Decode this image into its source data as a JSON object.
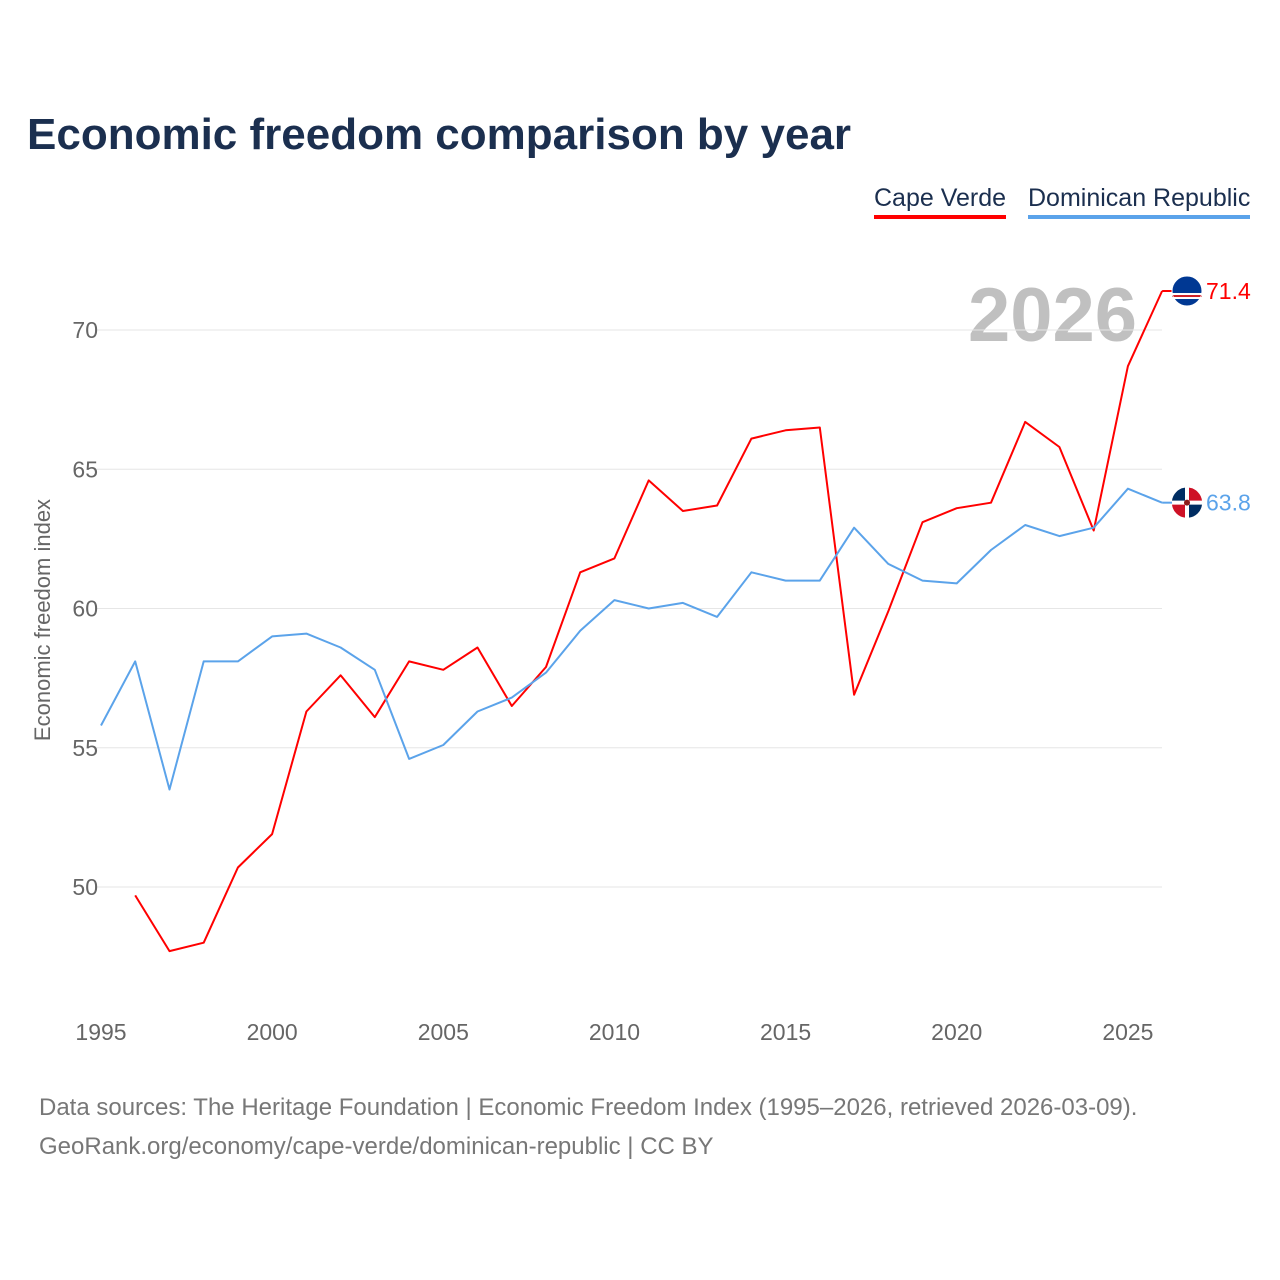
{
  "title": "Economic freedom comparison by year",
  "year_label": "2026",
  "source_line1": "Data sources: The Heritage Foundation | Economic Freedom Index (1995–2026, retrieved 2026-03-09).",
  "source_line2": "GeoRank.org/economy/cape-verde/dominican-republic | CC BY",
  "chart_data": {
    "type": "line",
    "title": "Economic freedom comparison by year",
    "xlabel": "",
    "ylabel": "Economic freedom index",
    "xlim": [
      1995,
      2026
    ],
    "ylim": [
      45.5,
      72
    ],
    "xticks": [
      1995,
      2000,
      2005,
      2010,
      2015,
      2020,
      2025
    ],
    "yticks": [
      50,
      55,
      60,
      65,
      70
    ],
    "grid": true,
    "legend_position": "top-right",
    "series": [
      {
        "name": "Cape Verde",
        "color": "#ff0000",
        "end_label": "71.4",
        "flag": "cape-verde-flag-icon",
        "x": [
          1996,
          1997,
          1998,
          1999,
          2000,
          2001,
          2002,
          2003,
          2004,
          2005,
          2006,
          2007,
          2008,
          2009,
          2010,
          2011,
          2012,
          2013,
          2014,
          2015,
          2016,
          2017,
          2018,
          2019,
          2020,
          2021,
          2022,
          2023,
          2024,
          2025,
          2026
        ],
        "values": [
          49.7,
          47.7,
          48.0,
          50.7,
          51.9,
          56.3,
          57.6,
          56.1,
          58.1,
          57.8,
          58.6,
          56.5,
          57.9,
          61.3,
          61.8,
          64.6,
          63.5,
          63.7,
          66.1,
          66.4,
          66.5,
          56.9,
          59.9,
          63.1,
          63.6,
          63.8,
          66.7,
          65.8,
          62.8,
          68.7,
          71.4
        ]
      },
      {
        "name": "Dominican Republic",
        "color": "#5ba3ea",
        "end_label": "63.8",
        "flag": "dominican-republic-flag-icon",
        "x": [
          1995,
          1996,
          1997,
          1998,
          1999,
          2000,
          2001,
          2002,
          2003,
          2004,
          2005,
          2006,
          2007,
          2008,
          2009,
          2010,
          2011,
          2012,
          2013,
          2014,
          2015,
          2016,
          2017,
          2018,
          2019,
          2020,
          2021,
          2022,
          2023,
          2024,
          2025,
          2026
        ],
        "values": [
          55.8,
          58.1,
          53.5,
          58.1,
          58.1,
          59.0,
          59.1,
          58.6,
          57.8,
          54.6,
          55.1,
          56.3,
          56.8,
          57.7,
          59.2,
          60.3,
          60.0,
          60.2,
          59.7,
          61.3,
          61.0,
          61.0,
          62.9,
          61.6,
          61.0,
          60.9,
          62.1,
          63.0,
          62.6,
          62.9,
          64.3,
          63.8
        ]
      }
    ]
  }
}
